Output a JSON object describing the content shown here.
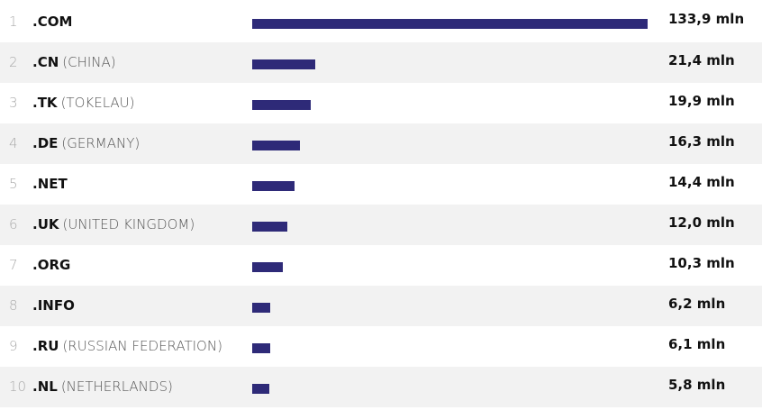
{
  "chart_data": {
    "type": "bar",
    "orientation": "horizontal",
    "bar_color": "#2e2a78",
    "max_value": 133.9,
    "rows": [
      {
        "rank": "1",
        "tld": ".COM",
        "country": "",
        "value": 133.9,
        "label": "133,9 mln"
      },
      {
        "rank": "2",
        "tld": ".CN",
        "country": "(CHINA)",
        "value": 21.4,
        "label": "21,4 mln"
      },
      {
        "rank": "3",
        "tld": ".TK",
        "country": "(TOKELAU)",
        "value": 19.9,
        "label": "19,9 mln"
      },
      {
        "rank": "4",
        "tld": ".DE",
        "country": "(GERMANY)",
        "value": 16.3,
        "label": "16,3 mln"
      },
      {
        "rank": "5",
        "tld": ".NET",
        "country": "",
        "value": 14.4,
        "label": "14,4 mln"
      },
      {
        "rank": "6",
        "tld": ".UK",
        "country": "(UNITED KINGDOM)",
        "value": 12.0,
        "label": "12,0 mln"
      },
      {
        "rank": "7",
        "tld": ".ORG",
        "country": "",
        "value": 10.3,
        "label": "10,3 mln"
      },
      {
        "rank": "8",
        "tld": ".INFO",
        "country": "",
        "value": 6.2,
        "label": "6,2 mln"
      },
      {
        "rank": "9",
        "tld": ".RU",
        "country": "(RUSSIAN FEDERATION)",
        "value": 6.1,
        "label": "6,1 mln"
      },
      {
        "rank": "10",
        "tld": ".NL",
        "country": "(NETHERLANDS)",
        "value": 5.8,
        "label": "5,8 mln"
      }
    ]
  }
}
